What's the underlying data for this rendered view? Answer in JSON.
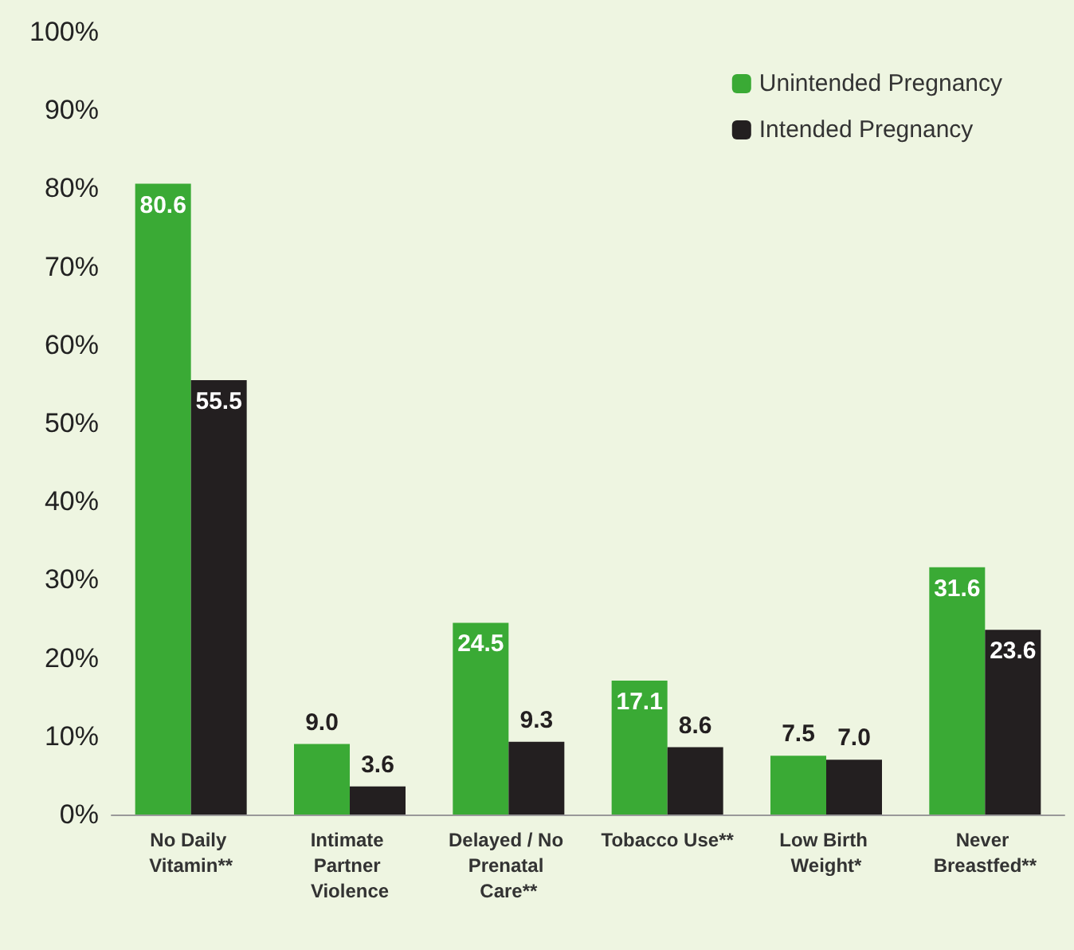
{
  "chart_data": {
    "type": "bar",
    "categories": [
      "No Daily Vitamin**",
      "Intimate Partner Violence",
      "Delayed / No Prenatal Care**",
      "Tobacco Use**",
      "Low Birth Weight*",
      "Never Breastfed**"
    ],
    "series": [
      {
        "name": "Unintended Pregnancy",
        "color": "#3aaa35",
        "values": [
          80.6,
          9.0,
          24.5,
          17.1,
          7.5,
          31.6
        ],
        "value_labels": [
          "80.6",
          "9.0",
          "24.5",
          "17.1",
          "7.5",
          "31.6"
        ]
      },
      {
        "name": "Intended Pregnancy",
        "color": "#231f20",
        "values": [
          55.5,
          3.6,
          9.3,
          8.6,
          7.0,
          23.6
        ],
        "value_labels": [
          "55.5",
          "3.6",
          "9.3",
          "8.6",
          "7.0",
          "23.6"
        ]
      }
    ],
    "ylim": [
      0,
      100
    ],
    "yticks": [
      {
        "value": 0,
        "label": "0%"
      },
      {
        "value": 10,
        "label": "10%"
      },
      {
        "value": 20,
        "label": "20%"
      },
      {
        "value": 30,
        "label": "30%"
      },
      {
        "value": 40,
        "label": "40%"
      },
      {
        "value": 50,
        "label": "50%"
      },
      {
        "value": 60,
        "label": "60%"
      },
      {
        "value": 70,
        "label": "70%"
      },
      {
        "value": 80,
        "label": "80%"
      },
      {
        "value": 90,
        "label": "90%"
      },
      {
        "value": 100,
        "label": "100%"
      }
    ],
    "grid": false,
    "legend": "top right"
  }
}
